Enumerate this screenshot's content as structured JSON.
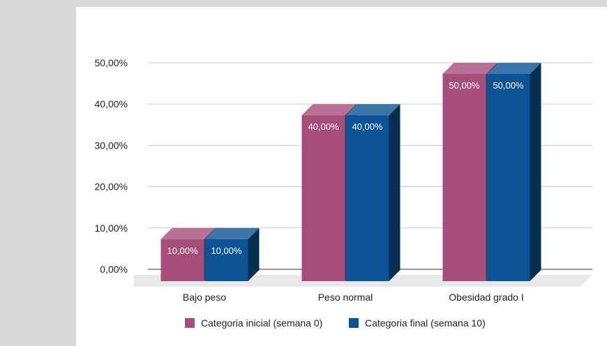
{
  "chart_data": {
    "type": "bar",
    "style": "3d-clustered",
    "categories": [
      "Bajo peso",
      "Peso normal",
      "Obesidad grado I"
    ],
    "series": [
      {
        "name": "Categoria inicial (semana 0)",
        "values": [
          10,
          40,
          50
        ],
        "labels": [
          "10,00%",
          "40,00%",
          "50,00%"
        ],
        "color": "#a64d79"
      },
      {
        "name": "Categoria final (semana 10)",
        "values": [
          10,
          40,
          50
        ],
        "labels": [
          "10,00%",
          "40,00%",
          "50,00%"
        ],
        "color": "#0b5394"
      }
    ],
    "y_ticks": [
      "0,00%",
      "10,00%",
      "20,00%",
      "30,00%",
      "40,00%",
      "50,00%"
    ],
    "ylim": [
      0,
      50
    ],
    "grid": true,
    "legend_position": "bottom"
  }
}
